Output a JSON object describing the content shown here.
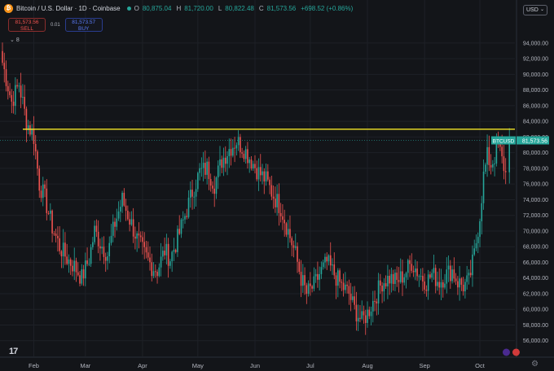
{
  "header": {
    "title": "Bitcoin / U.S. Dollar · 1D · Coinbase",
    "ohlc": [
      {
        "label": "O",
        "value": "80,875.04"
      },
      {
        "label": "H",
        "value": "81,720.00"
      },
      {
        "label": "L",
        "value": "80,822.48"
      },
      {
        "label": "C",
        "value": "81,573.56"
      }
    ],
    "change": "+698.52 (+0.86%)"
  },
  "trade": {
    "sell_price": "81,573.56",
    "sell_label": "SELL",
    "spread": "0.01",
    "buy_price": "81,573.57",
    "buy_label": "BUY"
  },
  "indicator_count": "8",
  "currency": "USD",
  "colors": {
    "background": "#131519",
    "up": "#26a69a",
    "down": "#ef5350",
    "horizontal_line": "#f5e626",
    "grid": "#1e2127",
    "axis_text": "#b2b5be"
  },
  "chart_data": {
    "type": "candlestick",
    "symbol_label": "BTCUSD",
    "last_price": "81,573.56",
    "last_price_value": 81573.56,
    "horizontal_line_level": 83000,
    "y_ticks": [
      "94,000.00",
      "92,000.00",
      "90,000.00",
      "88,000.00",
      "86,000.00",
      "84,000.00",
      "82,000.00",
      "80,000.00",
      "78,000.00",
      "76,000.00",
      "74,000.00",
      "72,000.00",
      "70,000.00",
      "68,000.00",
      "66,000.00",
      "64,000.00",
      "62,000.00",
      "60,000.00",
      "58,000.00",
      "56,000.00"
    ],
    "y_tick_values": [
      94000,
      92000,
      90000,
      88000,
      86000,
      84000,
      82000,
      80000,
      78000,
      76000,
      74000,
      72000,
      70000,
      68000,
      66000,
      64000,
      62000,
      60000,
      58000,
      56000
    ],
    "ylim": [
      54000,
      97000
    ],
    "x_ticks": [
      "Feb",
      "Mar",
      "Apr",
      "May",
      "Jun",
      "Jul",
      "Aug",
      "Sep",
      "Oct"
    ],
    "x_tick_dates": [
      "2025-02-01",
      "2025-03-01",
      "2025-04-01",
      "2025-05-01",
      "2025-06-01",
      "2025-07-01",
      "2025-08-01",
      "2025-09-01",
      "2025-10-01"
    ],
    "xlim": [
      "2025-01-15",
      "2025-10-20"
    ],
    "series": [
      {
        "date": "2025-01-15",
        "close": 91500
      },
      {
        "date": "2025-01-20",
        "close": 86500
      },
      {
        "date": "2025-01-24",
        "close": 88800
      },
      {
        "date": "2025-01-28",
        "close": 84000
      },
      {
        "date": "2025-02-01",
        "close": 82000
      },
      {
        "date": "2025-02-04",
        "close": 76000
      },
      {
        "date": "2025-02-07",
        "close": 74200
      },
      {
        "date": "2025-02-11",
        "close": 70500
      },
      {
        "date": "2025-02-15",
        "close": 68000
      },
      {
        "date": "2025-02-19",
        "close": 66500
      },
      {
        "date": "2025-02-23",
        "close": 65500
      },
      {
        "date": "2025-02-27",
        "close": 64000
      },
      {
        "date": "2025-03-03",
        "close": 66500
      },
      {
        "date": "2025-03-06",
        "close": 70000
      },
      {
        "date": "2025-03-09",
        "close": 68500
      },
      {
        "date": "2025-03-13",
        "close": 67000
      },
      {
        "date": "2025-03-17",
        "close": 71000
      },
      {
        "date": "2025-03-21",
        "close": 74000
      },
      {
        "date": "2025-03-25",
        "close": 71500
      },
      {
        "date": "2025-03-29",
        "close": 69000
      },
      {
        "date": "2025-04-02",
        "close": 67000
      },
      {
        "date": "2025-04-06",
        "close": 65500
      },
      {
        "date": "2025-04-09",
        "close": 65000
      },
      {
        "date": "2025-04-13",
        "close": 67500
      },
      {
        "date": "2025-04-16",
        "close": 66500
      },
      {
        "date": "2025-04-20",
        "close": 69000
      },
      {
        "date": "2025-04-24",
        "close": 72000
      },
      {
        "date": "2025-04-28",
        "close": 75000
      },
      {
        "date": "2025-05-02",
        "close": 77500
      },
      {
        "date": "2025-05-06",
        "close": 78000
      },
      {
        "date": "2025-05-10",
        "close": 76000
      },
      {
        "date": "2025-05-14",
        "close": 79000
      },
      {
        "date": "2025-05-18",
        "close": 80500
      },
      {
        "date": "2025-05-22",
        "close": 81500
      },
      {
        "date": "2025-05-26",
        "close": 80500
      },
      {
        "date": "2025-05-30",
        "close": 79000
      },
      {
        "date": "2025-06-03",
        "close": 77500
      },
      {
        "date": "2025-06-07",
        "close": 76500
      },
      {
        "date": "2025-06-11",
        "close": 74500
      },
      {
        "date": "2025-06-15",
        "close": 73000
      },
      {
        "date": "2025-06-19",
        "close": 70000
      },
      {
        "date": "2025-06-23",
        "close": 67000
      },
      {
        "date": "2025-06-26",
        "close": 64000
      },
      {
        "date": "2025-06-29",
        "close": 62000
      },
      {
        "date": "2025-07-03",
        "close": 63000
      },
      {
        "date": "2025-07-06",
        "close": 64500
      },
      {
        "date": "2025-07-10",
        "close": 66000
      },
      {
        "date": "2025-07-14",
        "close": 64500
      },
      {
        "date": "2025-07-18",
        "close": 63000
      },
      {
        "date": "2025-07-22",
        "close": 62000
      },
      {
        "date": "2025-07-25",
        "close": 60000
      },
      {
        "date": "2025-07-29",
        "close": 58500
      },
      {
        "date": "2025-08-01",
        "close": 59500
      },
      {
        "date": "2025-08-05",
        "close": 61500
      },
      {
        "date": "2025-08-09",
        "close": 63500
      },
      {
        "date": "2025-08-13",
        "close": 64000
      },
      {
        "date": "2025-08-17",
        "close": 63500
      },
      {
        "date": "2025-08-21",
        "close": 64500
      },
      {
        "date": "2025-08-25",
        "close": 66000
      },
      {
        "date": "2025-08-29",
        "close": 64500
      },
      {
        "date": "2025-09-02",
        "close": 63500
      },
      {
        "date": "2025-09-05",
        "close": 64500
      },
      {
        "date": "2025-09-09",
        "close": 63500
      },
      {
        "date": "2025-09-13",
        "close": 64500
      },
      {
        "date": "2025-09-16",
        "close": 65000
      },
      {
        "date": "2025-09-19",
        "close": 63500
      },
      {
        "date": "2025-09-22",
        "close": 63000
      },
      {
        "date": "2025-09-25",
        "close": 63500
      },
      {
        "date": "2025-09-28",
        "close": 67000
      },
      {
        "date": "2025-10-01",
        "close": 72000
      },
      {
        "date": "2025-10-03",
        "close": 77000
      },
      {
        "date": "2025-10-05",
        "close": 79500
      },
      {
        "date": "2025-10-07",
        "close": 78500
      },
      {
        "date": "2025-10-09",
        "close": 79500
      },
      {
        "date": "2025-10-11",
        "close": 81000
      },
      {
        "date": "2025-10-13",
        "close": 79000
      },
      {
        "date": "2025-10-15",
        "close": 77500
      }
    ]
  }
}
